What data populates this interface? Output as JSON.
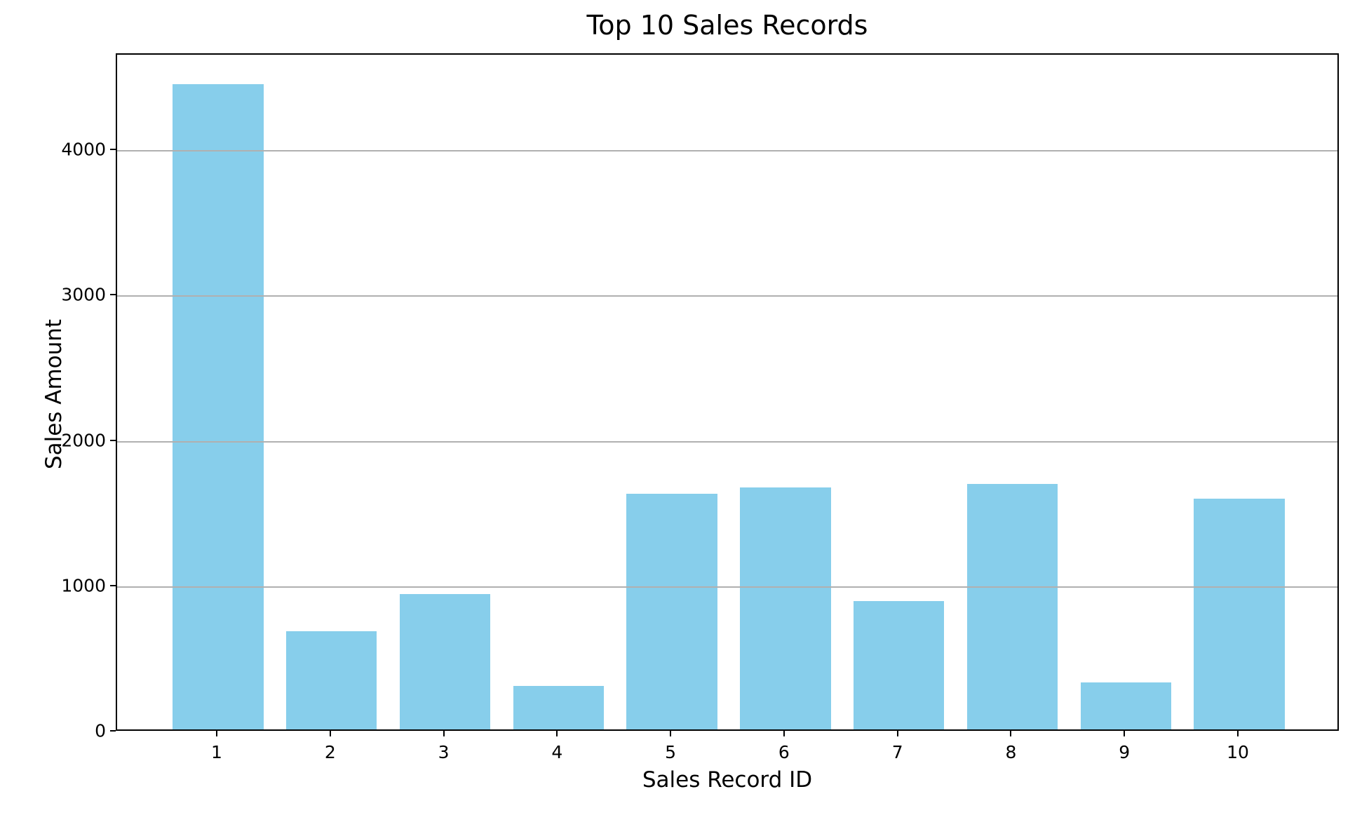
{
  "chart_data": {
    "type": "bar",
    "title": "Top 10 Sales Records",
    "xlabel": "Sales Record ID",
    "ylabel": "Sales Amount",
    "categories": [
      "1",
      "2",
      "3",
      "4",
      "5",
      "6",
      "7",
      "8",
      "9",
      "10"
    ],
    "values": [
      4440,
      675,
      930,
      300,
      1620,
      1665,
      885,
      1690,
      325,
      1590
    ],
    "yticks": [
      0,
      1000,
      2000,
      3000,
      4000
    ],
    "ytick_labels": [
      "0",
      "1000",
      "2000",
      "3000",
      "4000"
    ],
    "ylim": [
      0,
      4662
    ],
    "bar_color": "#87CEEB",
    "grid": true,
    "grid_color": "#b0b0b0",
    "grid_above_bars": true,
    "bar_width_ratio": 0.8,
    "x_edge_pad_units": 0.89,
    "spine_color": "#000000",
    "background_color": "#ffffff",
    "legend": "none"
  }
}
